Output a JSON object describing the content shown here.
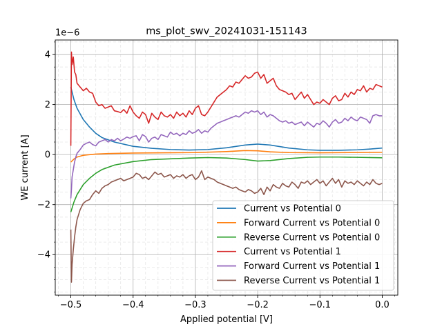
{
  "chart_data": {
    "type": "line",
    "title": "ms_plot_swv_20241031-151143",
    "xlabel": "Applied potential [V]",
    "ylabel": "WE current [A]",
    "y_scale_label": "1e−6",
    "xlim": [
      -0.525,
      0.025
    ],
    "ylim": [
      -5.62,
      4.58
    ],
    "x_ticks": [
      -0.5,
      -0.4,
      -0.3,
      -0.2,
      -0.1,
      0.0
    ],
    "x_tick_labels": [
      "−0.5",
      "−0.4",
      "−0.3",
      "−0.2",
      "−0.1",
      "0.0"
    ],
    "y_ticks": [
      -4,
      -2,
      0,
      2,
      4
    ],
    "y_tick_labels": [
      "−4",
      "−2",
      "0",
      "2",
      "4"
    ],
    "grid": "major and minor",
    "legend_position": "lower right",
    "colors": {
      "blue": "#1f77b4",
      "orange": "#ff7f0e",
      "green": "#2ca02c",
      "red": "#d62728",
      "purple": "#9467bd",
      "brown": "#8c564b"
    },
    "series": [
      {
        "name": "Current vs Potential 0",
        "color": "#1f77b4",
        "x": [
          -0.5,
          -0.495,
          -0.49,
          -0.48,
          -0.47,
          -0.46,
          -0.45,
          -0.43,
          -0.4,
          -0.37,
          -0.34,
          -0.31,
          -0.28,
          -0.25,
          -0.22,
          -0.2,
          -0.18,
          -0.15,
          -0.12,
          -0.1,
          -0.07,
          -0.04,
          -0.02,
          0.0
        ],
        "y": [
          2.7,
          2.2,
          1.85,
          1.4,
          1.1,
          0.85,
          0.68,
          0.5,
          0.33,
          0.25,
          0.2,
          0.18,
          0.2,
          0.27,
          0.38,
          0.42,
          0.38,
          0.26,
          0.19,
          0.17,
          0.17,
          0.19,
          0.22,
          0.26
        ]
      },
      {
        "name": "Forward Current vs Potential 0",
        "color": "#ff7f0e",
        "x": [
          -0.5,
          -0.495,
          -0.49,
          -0.48,
          -0.46,
          -0.44,
          -0.4,
          -0.35,
          -0.3,
          -0.25,
          -0.22,
          -0.2,
          -0.18,
          -0.15,
          -0.1,
          -0.05,
          0.0
        ],
        "y": [
          -0.3,
          -0.18,
          -0.1,
          -0.03,
          0.02,
          0.04,
          0.06,
          0.07,
          0.08,
          0.12,
          0.16,
          0.15,
          0.11,
          0.08,
          0.07,
          0.08,
          0.09
        ]
      },
      {
        "name": "Reverse Current vs Potential 0",
        "color": "#2ca02c",
        "x": [
          -0.5,
          -0.495,
          -0.49,
          -0.48,
          -0.47,
          -0.46,
          -0.45,
          -0.43,
          -0.4,
          -0.37,
          -0.34,
          -0.31,
          -0.28,
          -0.25,
          -0.22,
          -0.2,
          -0.18,
          -0.15,
          -0.12,
          -0.1,
          -0.07,
          -0.04,
          0.0
        ],
        "y": [
          -2.3,
          -1.9,
          -1.6,
          -1.2,
          -0.95,
          -0.75,
          -0.6,
          -0.42,
          -0.28,
          -0.2,
          -0.17,
          -0.14,
          -0.12,
          -0.14,
          -0.2,
          -0.26,
          -0.24,
          -0.16,
          -0.11,
          -0.1,
          -0.1,
          -0.11,
          -0.13
        ]
      },
      {
        "name": "Current vs Potential 1",
        "color": "#d62728",
        "x": [
          -0.5,
          -0.499,
          -0.498,
          -0.496,
          -0.494,
          -0.492,
          -0.49,
          -0.485,
          -0.48,
          -0.475,
          -0.47,
          -0.465,
          -0.46,
          -0.455,
          -0.45,
          -0.445,
          -0.44,
          -0.435,
          -0.43,
          -0.425,
          -0.42,
          -0.415,
          -0.41,
          -0.405,
          -0.4,
          -0.395,
          -0.39,
          -0.385,
          -0.38,
          -0.375,
          -0.37,
          -0.365,
          -0.36,
          -0.355,
          -0.35,
          -0.345,
          -0.34,
          -0.335,
          -0.33,
          -0.325,
          -0.32,
          -0.315,
          -0.31,
          -0.305,
          -0.3,
          -0.295,
          -0.29,
          -0.285,
          -0.28,
          -0.275,
          -0.27,
          -0.265,
          -0.26,
          -0.255,
          -0.25,
          -0.245,
          -0.24,
          -0.235,
          -0.23,
          -0.225,
          -0.22,
          -0.215,
          -0.21,
          -0.205,
          -0.2,
          -0.195,
          -0.19,
          -0.185,
          -0.18,
          -0.175,
          -0.17,
          -0.165,
          -0.16,
          -0.155,
          -0.15,
          -0.145,
          -0.14,
          -0.135,
          -0.13,
          -0.125,
          -0.12,
          -0.115,
          -0.11,
          -0.105,
          -0.1,
          -0.095,
          -0.09,
          -0.085,
          -0.08,
          -0.075,
          -0.07,
          -0.065,
          -0.06,
          -0.055,
          -0.05,
          -0.045,
          -0.04,
          -0.035,
          -0.03,
          -0.025,
          -0.02,
          -0.015,
          -0.01,
          -0.005,
          0.0
        ],
        "y": [
          0.35,
          4.1,
          3.6,
          3.9,
          3.3,
          3.2,
          2.85,
          2.7,
          2.55,
          2.65,
          2.5,
          2.45,
          2.1,
          1.95,
          2.0,
          1.85,
          1.9,
          1.95,
          1.75,
          1.72,
          1.68,
          1.8,
          1.65,
          1.95,
          1.7,
          1.55,
          1.45,
          1.7,
          1.6,
          1.25,
          1.65,
          1.5,
          1.4,
          1.7,
          1.55,
          1.5,
          1.6,
          1.45,
          1.7,
          1.55,
          1.65,
          1.5,
          1.75,
          1.6,
          1.85,
          1.95,
          1.6,
          1.55,
          1.7,
          1.9,
          2.1,
          2.3,
          2.4,
          2.5,
          2.6,
          2.75,
          2.7,
          2.9,
          2.85,
          3.0,
          3.15,
          3.05,
          3.1,
          3.25,
          3.3,
          3.05,
          3.2,
          2.85,
          2.95,
          3.05,
          2.75,
          2.6,
          2.55,
          2.5,
          2.4,
          2.45,
          2.2,
          2.35,
          2.5,
          2.25,
          2.4,
          2.2,
          2.0,
          2.1,
          2.05,
          2.2,
          2.1,
          2.0,
          2.25,
          2.35,
          2.15,
          2.2,
          2.45,
          2.3,
          2.5,
          2.4,
          2.6,
          2.55,
          2.75,
          2.5,
          2.65,
          2.6,
          2.8,
          2.75,
          2.7
        ]
      },
      {
        "name": "Forward Current vs Potential 1",
        "color": "#9467bd",
        "x": [
          -0.5,
          -0.499,
          -0.498,
          -0.496,
          -0.494,
          -0.492,
          -0.49,
          -0.485,
          -0.48,
          -0.475,
          -0.47,
          -0.465,
          -0.46,
          -0.455,
          -0.45,
          -0.445,
          -0.44,
          -0.435,
          -0.43,
          -0.425,
          -0.42,
          -0.415,
          -0.41,
          -0.405,
          -0.4,
          -0.395,
          -0.39,
          -0.385,
          -0.38,
          -0.375,
          -0.37,
          -0.365,
          -0.36,
          -0.355,
          -0.35,
          -0.345,
          -0.34,
          -0.335,
          -0.33,
          -0.325,
          -0.32,
          -0.315,
          -0.31,
          -0.305,
          -0.3,
          -0.295,
          -0.29,
          -0.285,
          -0.28,
          -0.275,
          -0.27,
          -0.265,
          -0.26,
          -0.255,
          -0.25,
          -0.245,
          -0.24,
          -0.235,
          -0.23,
          -0.225,
          -0.22,
          -0.215,
          -0.21,
          -0.205,
          -0.2,
          -0.195,
          -0.19,
          -0.185,
          -0.18,
          -0.175,
          -0.17,
          -0.165,
          -0.16,
          -0.155,
          -0.15,
          -0.145,
          -0.14,
          -0.135,
          -0.13,
          -0.125,
          -0.12,
          -0.115,
          -0.11,
          -0.105,
          -0.1,
          -0.095,
          -0.09,
          -0.085,
          -0.08,
          -0.075,
          -0.07,
          -0.065,
          -0.06,
          -0.055,
          -0.05,
          -0.045,
          -0.04,
          -0.035,
          -0.03,
          -0.025,
          -0.02,
          -0.015,
          -0.01,
          -0.005,
          0.0
        ],
        "y": [
          -1.75,
          -1.4,
          -0.9,
          -0.6,
          -0.3,
          -0.1,
          0.05,
          0.2,
          0.38,
          0.45,
          0.5,
          0.4,
          0.35,
          0.5,
          0.55,
          0.6,
          0.5,
          0.6,
          0.55,
          0.65,
          0.55,
          0.62,
          0.7,
          0.65,
          0.72,
          0.75,
          0.55,
          0.8,
          0.72,
          0.5,
          0.65,
          0.7,
          0.6,
          0.8,
          0.75,
          0.7,
          0.9,
          0.8,
          0.85,
          0.75,
          0.85,
          0.8,
          0.95,
          0.85,
          0.9,
          1.0,
          0.85,
          0.95,
          0.9,
          1.05,
          1.15,
          1.25,
          1.3,
          1.35,
          1.4,
          1.45,
          1.5,
          1.55,
          1.5,
          1.6,
          1.7,
          1.65,
          1.75,
          1.7,
          1.75,
          1.6,
          1.7,
          1.5,
          1.6,
          1.55,
          1.45,
          1.35,
          1.3,
          1.35,
          1.25,
          1.3,
          1.2,
          1.25,
          1.3,
          1.15,
          1.3,
          1.2,
          1.1,
          1.25,
          1.2,
          1.35,
          1.25,
          1.1,
          1.3,
          1.4,
          1.25,
          1.3,
          1.45,
          1.35,
          1.5,
          1.4,
          1.35,
          1.5,
          1.45,
          1.4,
          1.25,
          1.55,
          1.6,
          1.55,
          1.55
        ]
      },
      {
        "name": "Reverse Current vs Potential 1",
        "color": "#8c564b",
        "x": [
          -0.5,
          -0.499,
          -0.498,
          -0.496,
          -0.494,
          -0.492,
          -0.49,
          -0.485,
          -0.48,
          -0.475,
          -0.47,
          -0.465,
          -0.46,
          -0.455,
          -0.45,
          -0.445,
          -0.44,
          -0.435,
          -0.43,
          -0.425,
          -0.42,
          -0.415,
          -0.41,
          -0.405,
          -0.4,
          -0.395,
          -0.39,
          -0.385,
          -0.38,
          -0.375,
          -0.37,
          -0.365,
          -0.36,
          -0.355,
          -0.35,
          -0.345,
          -0.34,
          -0.335,
          -0.33,
          -0.325,
          -0.32,
          -0.315,
          -0.31,
          -0.305,
          -0.3,
          -0.295,
          -0.29,
          -0.285,
          -0.28,
          -0.275,
          -0.27,
          -0.265,
          -0.26,
          -0.255,
          -0.25,
          -0.245,
          -0.24,
          -0.235,
          -0.23,
          -0.225,
          -0.22,
          -0.215,
          -0.21,
          -0.205,
          -0.2,
          -0.195,
          -0.19,
          -0.185,
          -0.18,
          -0.175,
          -0.17,
          -0.165,
          -0.16,
          -0.155,
          -0.15,
          -0.145,
          -0.14,
          -0.135,
          -0.13,
          -0.125,
          -0.12,
          -0.115,
          -0.11,
          -0.105,
          -0.1,
          -0.095,
          -0.09,
          -0.085,
          -0.08,
          -0.075,
          -0.07,
          -0.065,
          -0.06,
          -0.055,
          -0.05,
          -0.045,
          -0.04,
          -0.035,
          -0.03,
          -0.025,
          -0.02,
          -0.015,
          -0.01,
          -0.005,
          0.0
        ],
        "y": [
          -3.0,
          -5.1,
          -4.4,
          -3.8,
          -3.3,
          -2.9,
          -2.6,
          -2.2,
          -1.95,
          -1.85,
          -1.8,
          -1.6,
          -1.45,
          -1.55,
          -1.35,
          -1.25,
          -1.2,
          -1.1,
          -1.05,
          -1.0,
          -0.95,
          -1.05,
          -1.0,
          -0.95,
          -0.9,
          -0.75,
          -0.8,
          -0.95,
          -0.9,
          -1.0,
          -0.85,
          -0.7,
          -0.8,
          -0.75,
          -0.9,
          -0.85,
          -0.8,
          -0.95,
          -0.85,
          -0.9,
          -0.8,
          -0.95,
          -0.85,
          -0.8,
          -1.0,
          -0.9,
          -0.65,
          -1.0,
          -0.9,
          -0.95,
          -1.0,
          -1.1,
          -1.15,
          -1.2,
          -1.25,
          -1.3,
          -1.35,
          -1.3,
          -1.4,
          -1.45,
          -1.5,
          -1.4,
          -1.45,
          -1.55,
          -1.5,
          -1.35,
          -1.6,
          -1.3,
          -1.45,
          -1.2,
          -1.3,
          -1.35,
          -1.15,
          -1.25,
          -1.3,
          -1.1,
          -1.2,
          -1.35,
          -1.1,
          -1.15,
          -1.05,
          -1.2,
          -1.1,
          -1.0,
          -1.15,
          -1.05,
          -1.25,
          -1.1,
          -0.95,
          -1.15,
          -1.0,
          -1.3,
          -1.05,
          -1.15,
          -1.1,
          -1.2,
          -1.05,
          -1.15,
          -1.25,
          -1.1,
          -1.2,
          -1.0,
          -1.15,
          -1.2,
          -1.15
        ]
      }
    ]
  }
}
